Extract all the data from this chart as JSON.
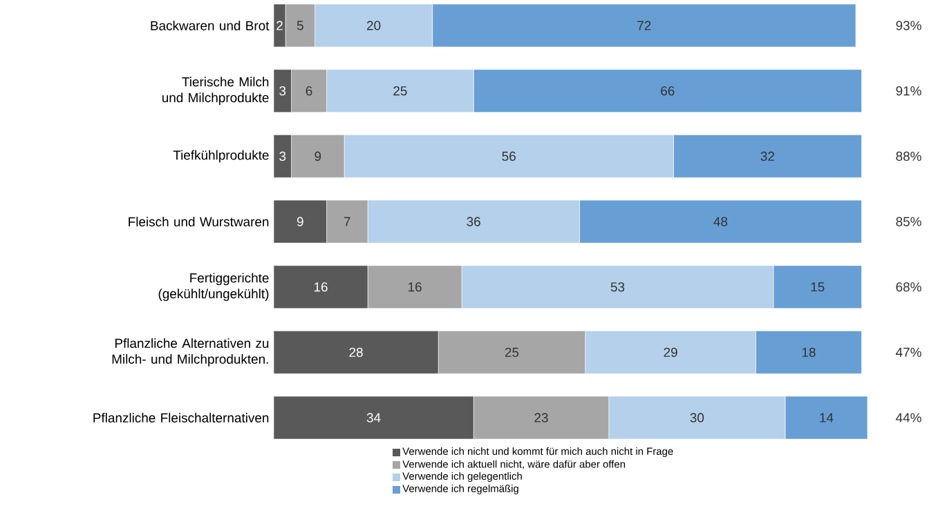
{
  "chart_data": {
    "type": "bar",
    "orientation": "horizontal",
    "stacked": true,
    "data_labels": true,
    "legend": "bottom",
    "categories": [
      "Backwaren und Brot",
      "Tierische Milch und Milchprodukte",
      "Tiefkühlprodukte",
      "Fleisch und Wurstwaren",
      "Fertiggerichte (gekühlt/ungekühlt)",
      "Pflanzliche Alternativen zu Milch- und Milchprodukten.",
      "Pflanzliche Fleischalternativen"
    ],
    "series": [
      {
        "name": "Verwende ich nicht und kommt für mich auch nicht in Frage",
        "color": "#595959",
        "values": [
          2,
          3,
          3,
          9,
          16,
          28,
          34
        ]
      },
      {
        "name": "Verwende ich aktuell nicht, wäre dafür aber offen",
        "color": "#a6a6a6",
        "values": [
          5,
          6,
          9,
          7,
          16,
          25,
          23
        ]
      },
      {
        "name": "Verwende ich gelegentlich",
        "color": "#b4d0ea",
        "values": [
          20,
          25,
          56,
          36,
          53,
          29,
          30
        ]
      },
      {
        "name": "Verwende ich regelmäßig",
        "color": "#679fd5",
        "values": [
          72,
          66,
          32,
          48,
          15,
          18,
          14
        ]
      }
    ],
    "annotations": [
      "93%",
      "91%",
      "88%",
      "85%",
      "68%",
      "47%",
      "44%"
    ]
  }
}
